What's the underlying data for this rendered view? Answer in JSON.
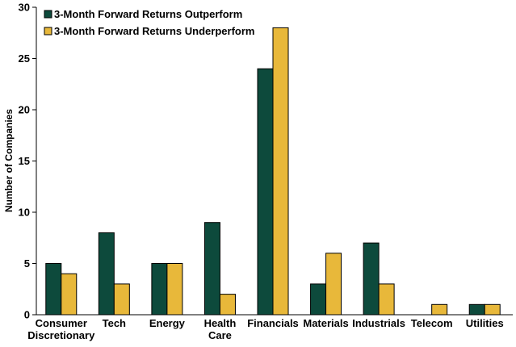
{
  "chart_data": {
    "type": "bar",
    "title": "",
    "xlabel": "",
    "ylabel": "Number of Companies",
    "ylim": [
      0,
      30
    ],
    "yticks": [
      0,
      5,
      10,
      15,
      20,
      25,
      30
    ],
    "grid": false,
    "legend": "top-left",
    "categories": [
      [
        "Consumer",
        "Discretionary"
      ],
      [
        "Tech"
      ],
      [
        "Energy"
      ],
      [
        "Health",
        "Care"
      ],
      [
        "Financials"
      ],
      [
        "Materials"
      ],
      [
        "Industrials"
      ],
      [
        "Telecom"
      ],
      [
        "Utilities"
      ]
    ],
    "series": [
      {
        "name": "3-Month Forward Returns Outperform",
        "color": "#0d4a3c",
        "values": [
          5,
          8,
          5,
          9,
          24,
          3,
          7,
          0,
          1
        ]
      },
      {
        "name": "3-Month Forward Returns Underperform",
        "color": "#e8b83a",
        "values": [
          4,
          3,
          5,
          2,
          28,
          6,
          3,
          1,
          1
        ]
      }
    ]
  }
}
